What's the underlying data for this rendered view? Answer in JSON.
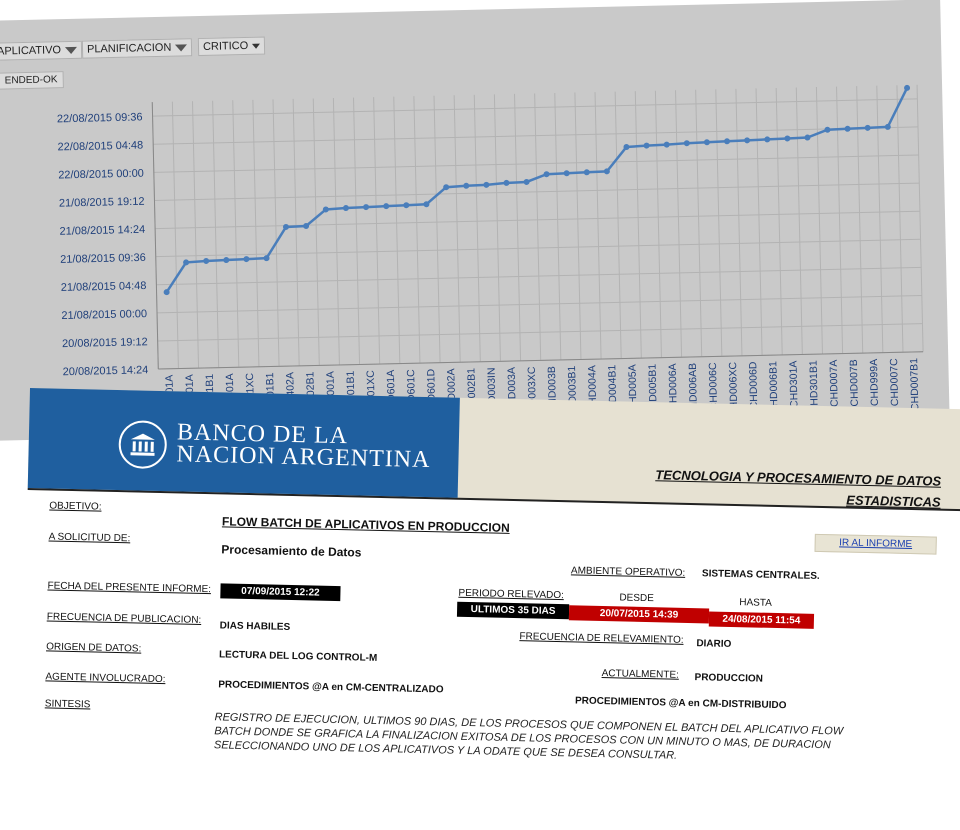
{
  "filters": {
    "aplicativo": "APLICATIVO",
    "planificacion": "PLANIFICACION",
    "critico": "CRITICO"
  },
  "legend": {
    "series": "ENDED-OK"
  },
  "chart_data": {
    "type": "line",
    "title": "",
    "xlabel": "",
    "ylabel": "",
    "y_ticks": [
      "20/08/2015 14:24",
      "20/08/2015 19:12",
      "21/08/2015 00:00",
      "21/08/2015 04:48",
      "21/08/2015 09:36",
      "21/08/2015 14:24",
      "21/08/2015 19:12",
      "22/08/2015 00:00",
      "22/08/2015 04:48",
      "22/08/2015 09:36"
    ],
    "ylim": [
      "20/08/2015 14:24",
      "22/08/2015 12:00"
    ],
    "grid": true,
    "categories": [
      "CHD101A",
      "CHD501A",
      "CHD501B1",
      "CHD401A",
      "CHD401XC",
      "CHD401B1",
      "CHD402A",
      "CHD402B1",
      "CHD001A",
      "CHD001B1",
      "CHD001XC",
      "CHD601A",
      "CHD601C",
      "CHD601D",
      "CHD002A",
      "CHD002B1",
      "CHD003IN",
      "CHD003A",
      "CHD003XC",
      "CHD003B",
      "CHD003B1",
      "CHD004A",
      "CHD004B1",
      "CHD005A",
      "CHD005B1",
      "CHD006A",
      "CHD006AB",
      "CHD006C",
      "CHD006XC",
      "CHD006D",
      "CHD006B1",
      "CHD301A",
      "CHD301B1",
      "CHD007A",
      "CHD007B",
      "CHD999A",
      "CHD007C",
      "CHD007B1"
    ],
    "series": [
      {
        "name": "ENDED-OK",
        "color": "#4a7ebb",
        "values": [
          "21/08/2015 03:30",
          "21/08/2015 08:30",
          "21/08/2015 08:40",
          "21/08/2015 08:45",
          "21/08/2015 08:50",
          "21/08/2015 08:55",
          "21/08/2015 14:10",
          "21/08/2015 14:15",
          "21/08/2015 17:00",
          "21/08/2015 17:10",
          "21/08/2015 17:15",
          "21/08/2015 17:20",
          "21/08/2015 17:25",
          "21/08/2015 17:30",
          "21/08/2015 20:20",
          "21/08/2015 20:30",
          "21/08/2015 20:35",
          "21/08/2015 20:50",
          "21/08/2015 20:55",
          "21/08/2015 22:10",
          "21/08/2015 22:15",
          "21/08/2015 22:20",
          "21/08/2015 22:25",
          "22/08/2015 02:30",
          "22/08/2015 02:40",
          "22/08/2015 02:45",
          "22/08/2015 02:55",
          "22/08/2015 03:00",
          "22/08/2015 03:05",
          "22/08/2015 03:10",
          "22/08/2015 03:15",
          "22/08/2015 03:20",
          "22/08/2015 03:25",
          "22/08/2015 04:40",
          "22/08/2015 04:45",
          "22/08/2015 04:50",
          "22/08/2015 04:55",
          "22/08/2015 11:30"
        ]
      }
    ]
  },
  "banner": {
    "bank_name_line1": "BANCO DE LA",
    "bank_name_line2": "NACION ARGENTINA",
    "title1": "TECNOLOGIA Y PROCESAMIENTO DE DATOS",
    "title2": "ESTADISTICAS",
    "logo_color": "#1f5f9f"
  },
  "report": {
    "objetivo_label": "OBJETIVO:",
    "objetivo_value": "FLOW BATCH DE APLICATIVOS EN PRODUCCION",
    "solicitud_label": "A SOLICITUD DE:",
    "solicitud_value": "Procesamiento de Datos",
    "ir_informe": "IR AL INFORME",
    "ambiente_label": "AMBIENTE OPERATIVO:",
    "ambiente_value": "SISTEMAS CENTRALES.",
    "fecha_label": "FECHA DEL PRESENTE INFORME:",
    "fecha_value": "07/09/2015 12:22",
    "periodo_label": "PERIODO RELEVADO:",
    "periodo_value": "ULTIMOS 35 DIAS",
    "desde_label": "DESDE",
    "desde_value": "20/07/2015 14:39",
    "hasta_label": "HASTA",
    "hasta_value": "24/08/2015 11:54",
    "frecuencia_pub_label": "FRECUENCIA DE PUBLICACION:",
    "frecuencia_pub_value": "DIAS HABILES",
    "frecuencia_rel_label": "FRECUENCIA DE RELEVAMIENTO:",
    "frecuencia_rel_value": "DIARIO",
    "origen_label": "ORIGEN DE DATOS:",
    "origen_value": "LECTURA DEL LOG CONTROL-M",
    "actualmente_label": "ACTUALMENTE:",
    "actualmente_value": "PRODUCCION",
    "agente_label": "AGENTE INVOLUCRADO:",
    "agente_value": "PROCEDIMIENTOS @A en CM-CENTRALIZADO",
    "agente_value2": "PROCEDIMIENTOS @A en CM-DISTRIBUIDO",
    "sintesis_label": "SINTESIS",
    "sintesis_value": "REGISTRO DE EJECUCION, ULTIMOS 90 DIAS, DE LOS PROCESOS QUE COMPONEN EL BATCH DEL APLICATIVO FLOW BATCH DONDE SE GRAFICA LA FINALIZACION EXITOSA DE LOS PROCESOS CON UN MINUTO O MAS, DE DURACION SELECCIONANDO UNO DE LOS APLICATIVOS Y LA ODATE QUE SE DESEA CONSULTAR."
  }
}
